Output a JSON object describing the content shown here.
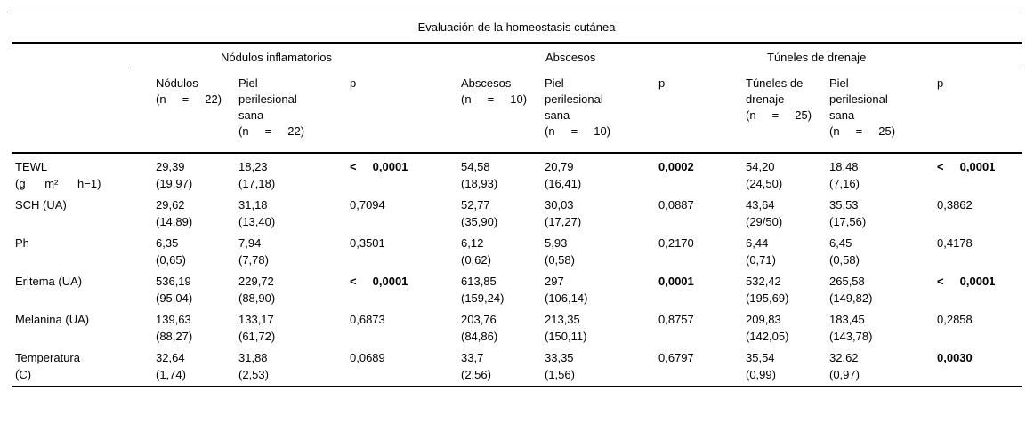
{
  "title": "Evaluación de la homeostasis cutánea",
  "colors": {
    "text": "#000000",
    "background": "#ffffff",
    "rule": "#000000"
  },
  "groups": [
    {
      "label": "Nódulos inflamatorios",
      "columns": [
        "Nódulos\n(n     =     22)",
        "Piel\nperilesional\nsana\n(n     =     22)",
        "p"
      ]
    },
    {
      "label": "Abscesos",
      "columns": [
        "Abscesos\n(n     =     10)",
        "Piel\nperilesional\nsana\n(n     =     10)",
        "p"
      ]
    },
    {
      "label": "Túneles de drenaje",
      "columns": [
        "Túneles de\ndrenaje\n(n     =     25)",
        "Piel\nperilesional\nsana\n(n     =     25)",
        "p"
      ]
    }
  ],
  "rows": [
    {
      "label": "TEWL\n(g      m²      h−1)",
      "cells": [
        {
          "text": "29,39\n(19,97)",
          "bold": false
        },
        {
          "text": "18,23\n(17,18)",
          "bold": false
        },
        {
          "text": "<     0,0001",
          "bold": true
        },
        {
          "text": "54,58\n(18,93)",
          "bold": false
        },
        {
          "text": "20,79\n(16,41)",
          "bold": false
        },
        {
          "text": "0,0002",
          "bold": true
        },
        {
          "text": "54,20\n(24,50)",
          "bold": false
        },
        {
          "text": "18,48\n(7,16)",
          "bold": false
        },
        {
          "text": "<     0,0001",
          "bold": true
        }
      ]
    },
    {
      "label": "SCH (UA)",
      "cells": [
        {
          "text": "29,62\n(14,89)",
          "bold": false
        },
        {
          "text": "31,18\n(13,40)",
          "bold": false
        },
        {
          "text": "0,7094",
          "bold": false
        },
        {
          "text": "52,77\n(35,90)",
          "bold": false
        },
        {
          "text": "30,03\n(17,27)",
          "bold": false
        },
        {
          "text": "0,0887",
          "bold": false
        },
        {
          "text": "43,64\n(29/50)",
          "bold": false
        },
        {
          "text": "35,53\n(17,56)",
          "bold": false
        },
        {
          "text": "0,3862",
          "bold": false
        }
      ]
    },
    {
      "label": "Ph",
      "cells": [
        {
          "text": "6,35\n(0,65)",
          "bold": false
        },
        {
          "text": "7,94\n(7,78)",
          "bold": false
        },
        {
          "text": "0,3501",
          "bold": false
        },
        {
          "text": "6,12\n(0,62)",
          "bold": false
        },
        {
          "text": "5,93\n(0,58)",
          "bold": false
        },
        {
          "text": "0,2170",
          "bold": false
        },
        {
          "text": "6,44\n(0,71)",
          "bold": false
        },
        {
          "text": "6,45\n(0,58)",
          "bold": false
        },
        {
          "text": "0,4178",
          "bold": false
        }
      ]
    },
    {
      "label": "Eritema (UA)",
      "cells": [
        {
          "text": "536,19\n(95,04)",
          "bold": false
        },
        {
          "text": "229,72\n(88,90)",
          "bold": false
        },
        {
          "text": "<     0,0001",
          "bold": true
        },
        {
          "text": "613,85\n(159,24)",
          "bold": false
        },
        {
          "text": "297\n(106,14)",
          "bold": false
        },
        {
          "text": "0,0001",
          "bold": true
        },
        {
          "text": "532,42\n(195,69)",
          "bold": false
        },
        {
          "text": "265,58\n(149,82)",
          "bold": false
        },
        {
          "text": "<     0,0001",
          "bold": true
        }
      ]
    },
    {
      "label": "Melanina (UA)",
      "cells": [
        {
          "text": "139,63\n(88,27)",
          "bold": false
        },
        {
          "text": "133,17\n(61,72)",
          "bold": false
        },
        {
          "text": "0,6873",
          "bold": false
        },
        {
          "text": "203,76\n(84,86)",
          "bold": false
        },
        {
          "text": "213,35\n(150,11)",
          "bold": false
        },
        {
          "text": "0,8757",
          "bold": false
        },
        {
          "text": "209,83\n(142,05)",
          "bold": false
        },
        {
          "text": "183,45\n(143,78)",
          "bold": false
        },
        {
          "text": "0,2858",
          "bold": false
        }
      ]
    },
    {
      "label": "Temperatura\n(̊C)",
      "cells": [
        {
          "text": "32,64\n(1,74)",
          "bold": false
        },
        {
          "text": "31,88\n(2,53)",
          "bold": false
        },
        {
          "text": "0,0689",
          "bold": false
        },
        {
          "text": "33,7\n(2,56)",
          "bold": false
        },
        {
          "text": "33,35\n(1,56)",
          "bold": false
        },
        {
          "text": "0,6797",
          "bold": false
        },
        {
          "text": "35,54\n(0,99)",
          "bold": false
        },
        {
          "text": "32,62\n(0,97)",
          "bold": false
        },
        {
          "text": "0,0030",
          "bold": true
        }
      ]
    }
  ]
}
